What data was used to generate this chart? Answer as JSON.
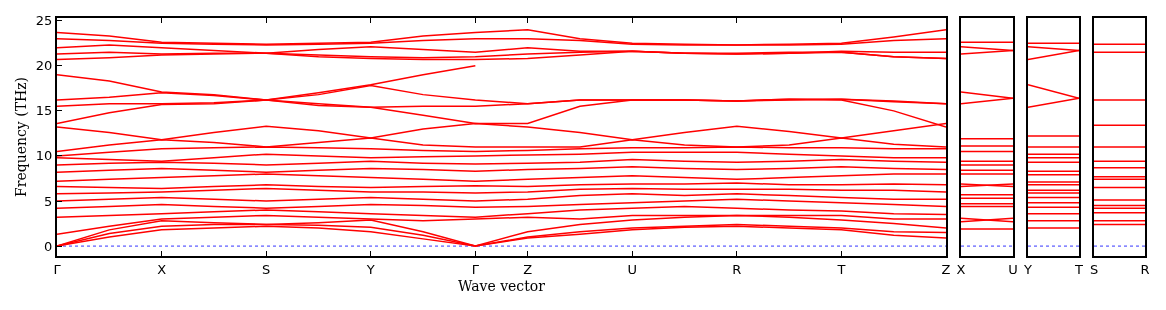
{
  "chart_data": [
    {
      "type": "line",
      "xlabel": "Wave vector",
      "ylabel": "Frequency (THz)",
      "ylim": [
        -1.1,
        25.3
      ],
      "yticks": [
        0,
        5,
        10,
        15,
        20,
        25
      ],
      "categories": [
        "Γ",
        null,
        "X",
        null,
        "S",
        null,
        "Y",
        null,
        "Γ",
        "Z",
        null,
        "U",
        null,
        "R",
        null,
        "T",
        null,
        "Z"
      ],
      "ref_lines": [
        {
          "axis": "y",
          "value": 0,
          "color": "#0000ff",
          "line_style": "dotted"
        }
      ],
      "series": [
        {
          "color": "#ff0000",
          "values": [
            23.7,
            23.3,
            22.6,
            22.5,
            22.4,
            22.5,
            22.6,
            23.3,
            23.7,
            24.0,
            23.0,
            22.5,
            22.4,
            22.3,
            22.4,
            22.5,
            23.2,
            24.0
          ]
        },
        {
          "color": "#ff0000",
          "values": [
            23.0,
            22.8,
            22.5,
            22.4,
            22.3,
            22.4,
            22.5,
            22.8,
            23.0,
            23.0,
            22.8,
            22.4,
            22.3,
            22.3,
            22.3,
            22.4,
            22.8,
            23.0
          ]
        },
        {
          "color": "#ff0000",
          "values": [
            22.0,
            22.3,
            22.0,
            21.7,
            21.4,
            21.8,
            22.1,
            21.8,
            21.5,
            22.0,
            21.6,
            21.6,
            21.4,
            21.3,
            21.4,
            21.6,
            21.5,
            21.5
          ]
        },
        {
          "color": "#ff0000",
          "values": [
            21.3,
            21.5,
            21.3,
            21.4,
            21.4,
            21.2,
            21.0,
            20.9,
            21.0,
            21.3,
            21.5,
            21.6,
            21.4,
            21.3,
            21.4,
            21.5,
            21.0,
            20.8
          ]
        },
        {
          "color": "#ff0000",
          "values": [
            20.7,
            20.9,
            21.2,
            21.3,
            21.4,
            21.0,
            20.8,
            20.7,
            20.7,
            20.8,
            21.2,
            21.6,
            21.4,
            21.4,
            21.5,
            21.5,
            21.0,
            20.8
          ]
        },
        {
          "color": "#ff0000",
          "values": [
            19.0,
            18.3,
            17.1,
            16.8,
            16.2,
            17.0,
            17.9,
            19.0,
            20.0,
            null,
            null,
            null,
            null,
            null,
            null,
            null,
            null,
            null
          ]
        },
        {
          "color": "#ff0000",
          "values": [
            16.2,
            16.5,
            17.0,
            16.7,
            16.2,
            15.8,
            15.4,
            15.5,
            15.5,
            15.8,
            16.2,
            16.2,
            16.2,
            16.1,
            16.3,
            16.3,
            16.0,
            15.8
          ]
        },
        {
          "color": "#ff0000",
          "values": [
            15.5,
            15.8,
            15.8,
            15.9,
            16.2,
            16.8,
            17.8,
            16.8,
            16.2,
            15.8,
            16.2,
            16.2,
            16.2,
            16.1,
            16.2,
            16.3,
            16.1,
            15.8
          ]
        },
        {
          "color": "#ff0000",
          "values": [
            13.6,
            14.8,
            15.7,
            15.8,
            16.2,
            15.6,
            15.4,
            14.5,
            13.6,
            13.6,
            15.5,
            16.2,
            16.2,
            16.1,
            16.3,
            16.2,
            15.0,
            13.2
          ]
        },
        {
          "color": "#ff0000",
          "values": [
            13.2,
            12.6,
            11.8,
            12.6,
            13.3,
            12.8,
            12.0,
            13.0,
            13.6,
            13.2,
            12.6,
            11.8,
            12.6,
            13.3,
            12.7,
            12.0,
            12.8,
            13.6
          ]
        },
        {
          "color": "#ff0000",
          "values": [
            10.5,
            11.2,
            11.8,
            11.5,
            11.0,
            11.5,
            12.0,
            11.2,
            11.0,
            11.0,
            11.0,
            11.8,
            11.2,
            11.0,
            11.2,
            12.0,
            11.3,
            11.0
          ]
        },
        {
          "color": "#ff0000",
          "values": [
            10.0,
            10.4,
            10.8,
            10.9,
            11.0,
            10.9,
            10.8,
            10.6,
            10.5,
            10.6,
            10.8,
            10.9,
            10.9,
            11.0,
            10.9,
            10.9,
            10.8,
            10.8
          ]
        },
        {
          "color": "#ff0000",
          "values": [
            9.8,
            9.6,
            9.4,
            9.8,
            10.2,
            10.0,
            9.8,
            9.9,
            10.0,
            10.1,
            10.2,
            10.4,
            10.4,
            10.4,
            10.2,
            10.0,
            9.8,
            9.8
          ]
        },
        {
          "color": "#ff0000",
          "values": [
            9.0,
            9.2,
            9.3,
            9.2,
            9.0,
            9.2,
            9.4,
            9.2,
            9.1,
            9.2,
            9.3,
            9.6,
            9.4,
            9.3,
            9.4,
            9.6,
            9.4,
            9.3
          ]
        },
        {
          "color": "#ff0000",
          "values": [
            8.2,
            8.4,
            8.6,
            8.4,
            8.2,
            8.4,
            8.6,
            8.5,
            8.3,
            8.5,
            8.6,
            8.8,
            8.6,
            8.5,
            8.6,
            8.8,
            8.6,
            8.5
          ]
        },
        {
          "color": "#ff0000",
          "values": [
            7.2,
            7.4,
            7.6,
            7.8,
            8.0,
            7.8,
            7.6,
            7.4,
            7.2,
            7.4,
            7.6,
            7.8,
            7.6,
            7.4,
            7.6,
            7.8,
            8.0,
            8.0
          ]
        },
        {
          "color": "#ff0000",
          "values": [
            6.6,
            6.5,
            6.4,
            6.6,
            6.8,
            6.6,
            6.5,
            6.6,
            6.7,
            6.6,
            6.8,
            6.9,
            6.9,
            7.0,
            6.8,
            6.8,
            6.9,
            6.8
          ]
        },
        {
          "color": "#ff0000",
          "values": [
            5.8,
            5.9,
            6.0,
            6.2,
            6.4,
            6.2,
            6.0,
            6.0,
            5.9,
            6.0,
            6.3,
            6.4,
            6.3,
            6.3,
            6.3,
            6.2,
            6.2,
            6.0
          ]
        },
        {
          "color": "#ff0000",
          "values": [
            5.0,
            5.2,
            5.4,
            5.2,
            5.0,
            5.2,
            5.4,
            5.2,
            5.0,
            5.2,
            5.6,
            5.8,
            5.6,
            5.8,
            5.6,
            5.4,
            5.2,
            5.2
          ]
        },
        {
          "color": "#ff0000",
          "values": [
            4.2,
            4.4,
            4.6,
            4.4,
            4.2,
            4.4,
            4.6,
            4.5,
            4.3,
            4.4,
            4.6,
            4.8,
            5.0,
            5.2,
            5.0,
            4.8,
            4.6,
            4.4
          ]
        },
        {
          "color": "#ff0000",
          "values": [
            3.2,
            3.4,
            3.6,
            3.8,
            4.0,
            3.8,
            3.6,
            3.4,
            3.2,
            3.6,
            4.0,
            4.2,
            4.4,
            4.2,
            4.0,
            3.9,
            3.6,
            3.5
          ]
        },
        {
          "color": "#ff0000",
          "values": [
            1.3,
            2.2,
            3.0,
            3.2,
            3.4,
            3.2,
            3.0,
            2.8,
            3.0,
            3.2,
            3.0,
            3.4,
            3.4,
            3.4,
            3.4,
            3.4,
            3.0,
            3.0
          ]
        },
        {
          "color": "#ff0000",
          "values": [
            0,
            1.8,
            2.8,
            2.6,
            2.4,
            2.6,
            2.9,
            1.6,
            0,
            1.6,
            2.4,
            2.9,
            3.2,
            3.4,
            3.2,
            2.9,
            2.5,
            2.0
          ]
        },
        {
          "color": "#ff0000",
          "values": [
            0,
            1.4,
            2.2,
            2.4,
            2.4,
            2.3,
            2.1,
            1.2,
            0,
            1.0,
            1.6,
            2.0,
            2.2,
            2.4,
            2.2,
            2.0,
            1.6,
            1.5
          ]
        },
        {
          "color": "#ff0000",
          "values": [
            0,
            1.0,
            1.8,
            2.0,
            2.2,
            2.0,
            1.6,
            0.8,
            0,
            0.9,
            1.3,
            1.8,
            2.1,
            2.2,
            2.0,
            1.8,
            1.2,
            0.9
          ]
        }
      ]
    },
    {
      "type": "line",
      "ylim": [
        -1.1,
        25.3
      ],
      "yticks": [
        0,
        5,
        10,
        15,
        20,
        25
      ],
      "tick_labels": "x",
      "categories": [
        "X",
        "U"
      ],
      "ref_lines": [
        {
          "axis": "y",
          "value": 0,
          "color": "#0000ff",
          "line_style": "dotted"
        }
      ],
      "series": [
        {
          "color": "#ff0000",
          "values": [
            22.6,
            22.6
          ]
        },
        {
          "color": "#ff0000",
          "values": [
            22.1,
            21.7
          ]
        },
        {
          "color": "#ff0000",
          "values": [
            21.3,
            21.7
          ]
        },
        {
          "color": "#ff0000",
          "values": [
            17.1,
            16.4
          ]
        },
        {
          "color": "#ff0000",
          "values": [
            15.8,
            16.4
          ]
        },
        {
          "color": "#ff0000",
          "values": [
            11.9,
            11.9
          ]
        },
        {
          "color": "#ff0000",
          "values": [
            11.1,
            11.1
          ]
        },
        {
          "color": "#ff0000",
          "values": [
            10.5,
            10.5
          ]
        },
        {
          "color": "#ff0000",
          "values": [
            9.4,
            9.4
          ]
        },
        {
          "color": "#ff0000",
          "values": [
            9.0,
            9.0
          ]
        },
        {
          "color": "#ff0000",
          "values": [
            8.4,
            8.4
          ]
        },
        {
          "color": "#ff0000",
          "values": [
            8.0,
            8.0
          ]
        },
        {
          "color": "#ff0000",
          "values": [
            6.9,
            6.6
          ]
        },
        {
          "color": "#ff0000",
          "values": [
            6.6,
            6.9
          ]
        },
        {
          "color": "#ff0000",
          "values": [
            5.7,
            5.7
          ]
        },
        {
          "color": "#ff0000",
          "values": [
            5.3,
            5.3
          ]
        },
        {
          "color": "#ff0000",
          "values": [
            4.7,
            4.7
          ]
        },
        {
          "color": "#ff0000",
          "values": [
            4.4,
            4.4
          ]
        },
        {
          "color": "#ff0000",
          "values": [
            3.1,
            2.7
          ]
        },
        {
          "color": "#ff0000",
          "values": [
            2.7,
            3.1
          ]
        },
        {
          "color": "#ff0000",
          "values": [
            1.9,
            1.9
          ]
        }
      ]
    },
    {
      "type": "line",
      "ylim": [
        -1.1,
        25.3
      ],
      "yticks": [
        0,
        5,
        10,
        15,
        20,
        25
      ],
      "tick_labels": "x",
      "categories": [
        "Y",
        "T"
      ],
      "ref_lines": [
        {
          "axis": "y",
          "value": 0,
          "color": "#0000ff",
          "line_style": "dotted"
        }
      ],
      "series": [
        {
          "color": "#ff0000",
          "values": [
            22.5,
            22.5
          ]
        },
        {
          "color": "#ff0000",
          "values": [
            22.1,
            21.7
          ]
        },
        {
          "color": "#ff0000",
          "values": [
            20.7,
            21.7
          ]
        },
        {
          "color": "#ff0000",
          "values": [
            17.9,
            16.4
          ]
        },
        {
          "color": "#ff0000",
          "values": [
            15.4,
            16.4
          ]
        },
        {
          "color": "#ff0000",
          "values": [
            12.2,
            12.2
          ]
        },
        {
          "color": "#ff0000",
          "values": [
            11.0,
            11.0
          ]
        },
        {
          "color": "#ff0000",
          "values": [
            10.2,
            10.2
          ]
        },
        {
          "color": "#ff0000",
          "values": [
            9.8,
            9.8
          ]
        },
        {
          "color": "#ff0000",
          "values": [
            9.3,
            9.3
          ]
        },
        {
          "color": "#ff0000",
          "values": [
            8.3,
            8.3
          ]
        },
        {
          "color": "#ff0000",
          "values": [
            7.9,
            7.9
          ]
        },
        {
          "color": "#ff0000",
          "values": [
            7.1,
            7.1
          ]
        },
        {
          "color": "#ff0000",
          "values": [
            6.8,
            6.8
          ]
        },
        {
          "color": "#ff0000",
          "values": [
            6.2,
            6.2
          ]
        },
        {
          "color": "#ff0000",
          "values": [
            5.9,
            5.9
          ]
        },
        {
          "color": "#ff0000",
          "values": [
            5.4,
            5.4
          ]
        },
        {
          "color": "#ff0000",
          "values": [
            4.8,
            4.8
          ]
        },
        {
          "color": "#ff0000",
          "values": [
            4.3,
            4.3
          ]
        },
        {
          "color": "#ff0000",
          "values": [
            3.6,
            3.6
          ]
        },
        {
          "color": "#ff0000",
          "values": [
            2.8,
            2.8
          ]
        },
        {
          "color": "#ff0000",
          "values": [
            2.0,
            2.0
          ]
        }
      ]
    },
    {
      "type": "line",
      "ylim": [
        -1.1,
        25.3
      ],
      "yticks": [
        0,
        5,
        10,
        15,
        20,
        25
      ],
      "tick_labels": "x",
      "categories": [
        "S",
        "R"
      ],
      "ref_lines": [
        {
          "axis": "y",
          "value": 0,
          "color": "#0000ff",
          "line_style": "dotted"
        }
      ],
      "series": [
        {
          "color": "#ff0000",
          "values": [
            22.4,
            22.4
          ]
        },
        {
          "color": "#ff0000",
          "values": [
            21.5,
            21.5
          ]
        },
        {
          "color": "#ff0000",
          "values": [
            16.2,
            16.2
          ]
        },
        {
          "color": "#ff0000",
          "values": [
            13.4,
            13.4
          ]
        },
        {
          "color": "#ff0000",
          "values": [
            11.0,
            11.0
          ]
        },
        {
          "color": "#ff0000",
          "values": [
            9.4,
            9.4
          ]
        },
        {
          "color": "#ff0000",
          "values": [
            8.7,
            8.7
          ]
        },
        {
          "color": "#ff0000",
          "values": [
            7.7,
            7.7
          ]
        },
        {
          "color": "#ff0000",
          "values": [
            7.4,
            7.4
          ]
        },
        {
          "color": "#ff0000",
          "values": [
            6.5,
            6.5
          ]
        },
        {
          "color": "#ff0000",
          "values": [
            5.1,
            5.1
          ]
        },
        {
          "color": "#ff0000",
          "values": [
            4.5,
            4.5
          ]
        },
        {
          "color": "#ff0000",
          "values": [
            4.2,
            4.2
          ]
        },
        {
          "color": "#ff0000",
          "values": [
            3.7,
            3.7
          ]
        },
        {
          "color": "#ff0000",
          "values": [
            2.8,
            2.8
          ]
        },
        {
          "color": "#ff0000",
          "values": [
            2.4,
            2.4
          ]
        }
      ]
    }
  ]
}
